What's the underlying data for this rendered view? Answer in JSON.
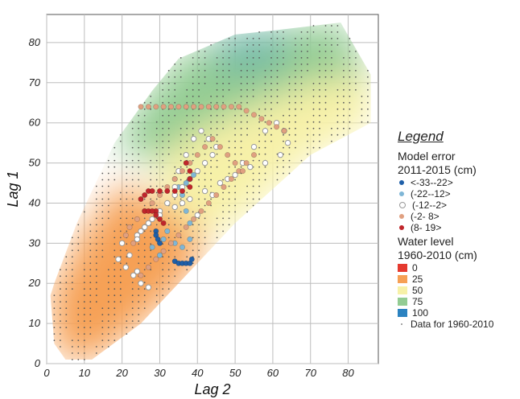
{
  "chart_data": {
    "type": "scatter",
    "xlabel": "Lag 2",
    "ylabel": "Lag 1",
    "xlim": [
      0,
      88
    ],
    "ylim": [
      0,
      87
    ],
    "xticks": [
      "0",
      "10",
      "20",
      "30",
      "40",
      "50",
      "60",
      "70",
      "80"
    ],
    "yticks": [
      "0",
      "10",
      "20",
      "30",
      "40",
      "50",
      "60",
      "70",
      "80"
    ],
    "grid": true,
    "legend_placement": "right",
    "legend": {
      "title": "Legend",
      "error_heading_1": "Model error",
      "error_heading_2": "2011-2015 (cm)",
      "error_classes": [
        {
          "label": "<-33--22>",
          "color": "#1f5fa8"
        },
        {
          "label": "(-22--12>",
          "color": "#7fb6d6"
        },
        {
          "label": "(-12--2>",
          "color": "#ffffff"
        },
        {
          "label": "(-2- 8>",
          "color": "#e0a080"
        },
        {
          "label": "(8- 19>",
          "color": "#c0262b"
        }
      ],
      "level_heading_1": "Water level",
      "level_heading_2": "1960-2010 (cm)",
      "level_classes": [
        {
          "label": "0",
          "color": "#e53a2f"
        },
        {
          "label": "25",
          "color": "#f6a055"
        },
        {
          "label": "50",
          "color": "#f7f1a8"
        },
        {
          "label": "75",
          "color": "#93cc93"
        },
        {
          "label": "100",
          "color": "#2b82c0"
        }
      ],
      "data_label": "Data for 1960-2010"
    },
    "surface_hull": [
      [
        1,
        17
      ],
      [
        2,
        5
      ],
      [
        5,
        1
      ],
      [
        12,
        1
      ],
      [
        25,
        10
      ],
      [
        50,
        35
      ],
      [
        70,
        52
      ],
      [
        86,
        60
      ],
      [
        86,
        72
      ],
      [
        78,
        85
      ],
      [
        60,
        83
      ],
      [
        50,
        82
      ],
      [
        35,
        76
      ],
      [
        28,
        68
      ],
      [
        18,
        55
      ],
      [
        8,
        35
      ],
      [
        2,
        20
      ]
    ],
    "surface_levels": [
      {
        "level": 10,
        "color": "#e53a2f",
        "region": [
          [
            6,
            2
          ],
          [
            12,
            1
          ],
          [
            18,
            5
          ],
          [
            13,
            11
          ],
          [
            8,
            8
          ]
        ]
      },
      {
        "level": 25,
        "color": "#f6a055",
        "region": [
          [
            1,
            17
          ],
          [
            2,
            5
          ],
          [
            5,
            1
          ],
          [
            12,
            1
          ],
          [
            25,
            10
          ],
          [
            38,
            22
          ],
          [
            42,
            32
          ],
          [
            30,
            40
          ],
          [
            20,
            45
          ],
          [
            10,
            33
          ]
        ]
      },
      {
        "level": 50,
        "color": "#f7f1a8",
        "region": [
          [
            30,
            40
          ],
          [
            42,
            32
          ],
          [
            50,
            35
          ],
          [
            70,
            52
          ],
          [
            86,
            60
          ],
          [
            86,
            72
          ],
          [
            70,
            70
          ],
          [
            55,
            64
          ],
          [
            40,
            58
          ],
          [
            30,
            52
          ]
        ]
      },
      {
        "level": 75,
        "color": "#93cc93",
        "region": [
          [
            18,
            55
          ],
          [
            28,
            68
          ],
          [
            35,
            76
          ],
          [
            50,
            82
          ],
          [
            60,
            83
          ],
          [
            78,
            85
          ],
          [
            86,
            72
          ],
          [
            70,
            70
          ],
          [
            55,
            64
          ],
          [
            40,
            58
          ],
          [
            28,
            50
          ]
        ]
      },
      {
        "level": 90,
        "color": "#6fb8a6",
        "region": [
          [
            42,
            78
          ],
          [
            52,
            83
          ],
          [
            62,
            83
          ],
          [
            66,
            77
          ],
          [
            55,
            72
          ],
          [
            45,
            74
          ]
        ]
      }
    ],
    "series": [
      {
        "class": "<-33--22>",
        "x": [
          34,
          35,
          36,
          37,
          38,
          38.5,
          29,
          29,
          29.5,
          30
        ],
        "y": [
          25.5,
          25,
          25,
          25,
          25,
          26,
          33,
          32,
          31,
          30
        ]
      },
      {
        "class": "(-22--12>",
        "x": [
          28,
          30,
          31,
          32,
          34,
          36,
          38,
          38,
          37,
          36,
          35,
          34,
          35,
          37,
          39
        ],
        "y": [
          29,
          27,
          31,
          33,
          30,
          29,
          31,
          35,
          38,
          42,
          44,
          46,
          48,
          45,
          47
        ]
      },
      {
        "class": "(-12--2>",
        "x": [
          19,
          21,
          23,
          25,
          27,
          24,
          22,
          20,
          24,
          26,
          28,
          30,
          32,
          34,
          36,
          38,
          40,
          42,
          44,
          45,
          43,
          41,
          39,
          37,
          35,
          34,
          36,
          40,
          44,
          48,
          52,
          55,
          58,
          61,
          63,
          64,
          62,
          58,
          54,
          50,
          46,
          42,
          38,
          34,
          30,
          27,
          25,
          24
        ],
        "y": [
          26,
          24,
          22,
          20,
          19,
          23,
          27,
          30,
          32,
          34,
          36,
          38,
          40,
          42,
          44,
          46,
          48,
          50,
          52,
          54,
          56,
          58,
          56,
          52,
          48,
          44,
          40,
          37,
          42,
          46,
          50,
          54,
          58,
          60,
          58,
          55,
          52,
          50,
          49,
          47,
          45,
          43,
          41,
          39,
          37,
          35,
          33,
          31
        ]
      },
      {
        "class": "(-2- 8>",
        "x": [
          25,
          27,
          29,
          31,
          33,
          35,
          37,
          39,
          41,
          43,
          45,
          47,
          49,
          51,
          53,
          55,
          57,
          59,
          61,
          63,
          55,
          53,
          51,
          49,
          47,
          45,
          43,
          41,
          39,
          37,
          35,
          33,
          31,
          29,
          27,
          25,
          23,
          21,
          22,
          24,
          26,
          28,
          30,
          32,
          34,
          36,
          38,
          40,
          42,
          44,
          46,
          48,
          50,
          52
        ],
        "y": [
          64,
          64,
          64,
          64,
          64,
          64,
          64,
          64,
          64,
          64,
          64,
          64,
          64,
          64,
          63,
          62,
          61,
          60,
          59,
          58,
          52,
          50,
          48,
          46,
          44,
          42,
          40,
          38,
          36,
          34,
          32,
          30,
          28,
          26,
          24,
          22,
          30,
          32,
          34,
          36,
          38,
          40,
          42,
          44,
          46,
          48,
          50,
          52,
          54,
          56,
          54,
          52,
          50,
          48
        ]
      },
      {
        "class": "(8- 19>",
        "x": [
          25,
          26,
          27,
          28,
          30,
          32,
          34,
          36,
          38,
          38,
          38,
          37,
          29,
          29,
          30,
          31,
          26,
          27,
          28
        ],
        "y": [
          41,
          42,
          43,
          43,
          43,
          43,
          43,
          43,
          44,
          46,
          48,
          50,
          38,
          37,
          36,
          35,
          38,
          38,
          38
        ]
      }
    ]
  }
}
